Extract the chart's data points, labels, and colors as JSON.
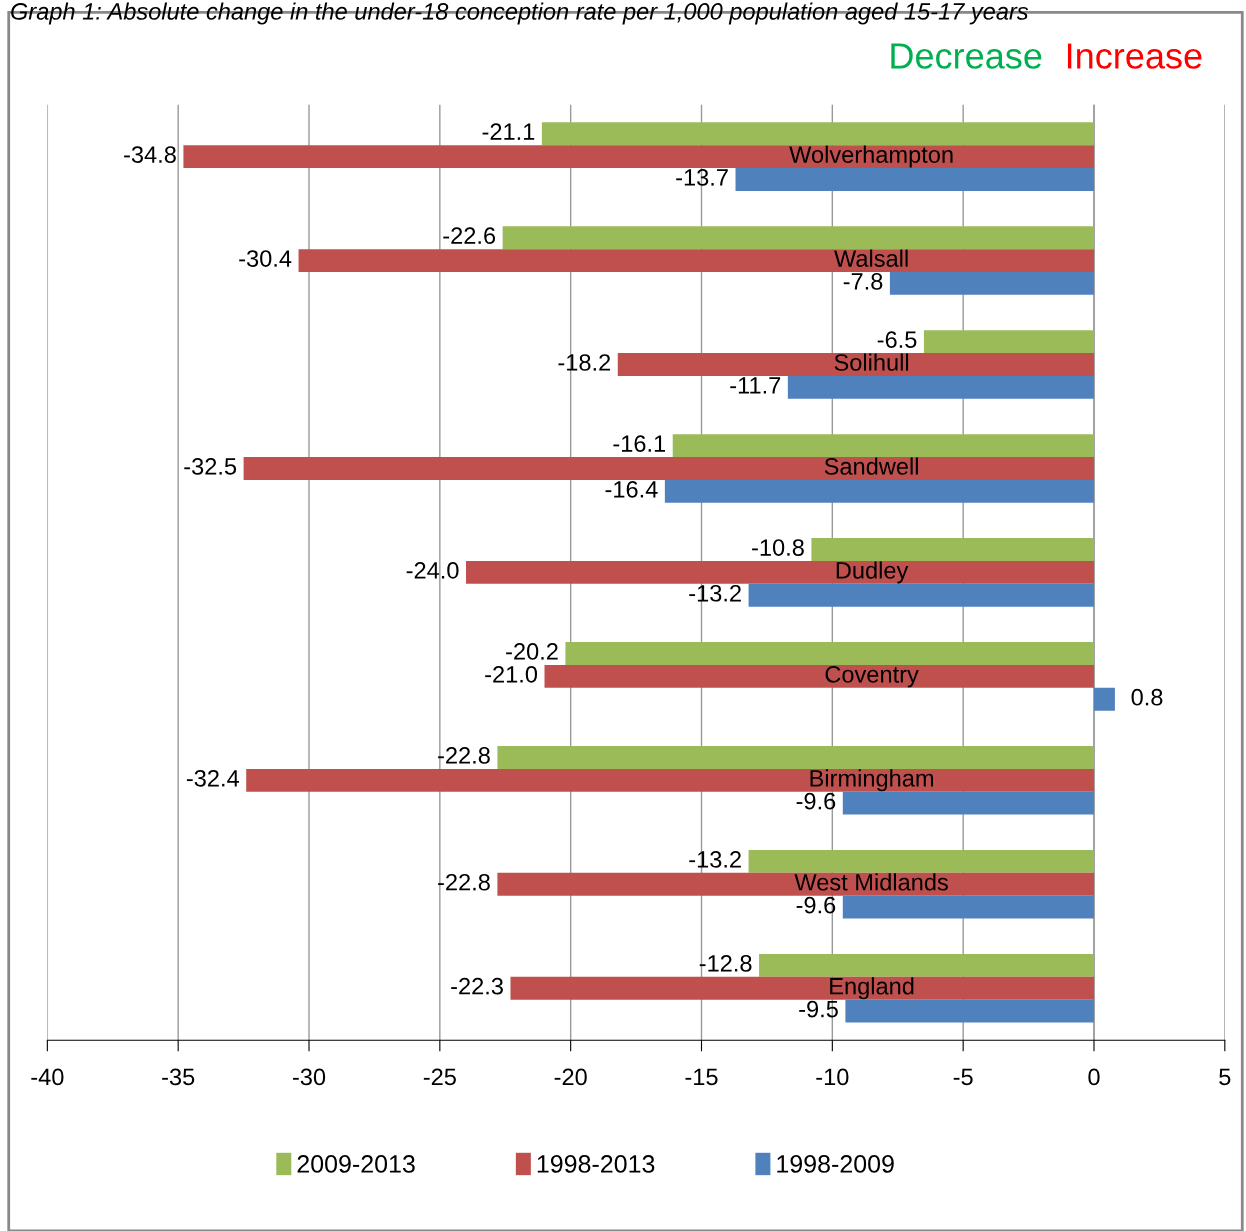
{
  "chart_data": {
    "type": "bar",
    "orientation": "horizontal",
    "title": "Graph 1: Absolute change in the under-18 conception rate per 1,000 population aged 15-17 years",
    "annotations": [
      "Decrease",
      "Increase"
    ],
    "categories": [
      "Wolverhampton",
      "Walsall",
      "Solihull",
      "Sandwell",
      "Dudley",
      "Coventry",
      "Birmingham",
      "West Midlands",
      "England"
    ],
    "series": [
      {
        "name": "2009-2013",
        "color": "#9bbb59",
        "values": [
          -21.1,
          -22.6,
          -6.5,
          -16.1,
          -10.8,
          -20.2,
          -22.8,
          -13.2,
          -12.8
        ],
        "value_labels": [
          "-21.1",
          "-22.6",
          "-6.5",
          "-16.1",
          "-10.8",
          "-20.2",
          "-22.8",
          "-13.2",
          "-12.8"
        ]
      },
      {
        "name": "1998-2013",
        "color": "#c0504d",
        "values": [
          -34.8,
          -30.4,
          -18.2,
          -32.5,
          -24.0,
          -21.0,
          -32.4,
          -22.8,
          -22.3
        ],
        "value_labels": [
          "-34.8",
          "-30.4",
          "-18.2",
          "-32.5",
          "-24.0",
          "-21.0",
          "-32.4",
          "-22.8",
          "-22.3"
        ]
      },
      {
        "name": "1998-2009",
        "color": "#4f81bd",
        "values": [
          -13.7,
          -7.8,
          -11.7,
          -16.4,
          -13.2,
          0.8,
          -9.6,
          -9.6,
          -9.5
        ],
        "value_labels": [
          "-13.7",
          "-7.8",
          "-11.7",
          "-16.4",
          "-13.2",
          "0.8",
          "-9.6",
          "-9.6",
          "-9.5"
        ]
      }
    ],
    "xlim": [
      -40,
      5
    ],
    "xticks": [
      -40,
      -35,
      -30,
      -25,
      -20,
      -15,
      -10,
      -5,
      0,
      5
    ],
    "grid": "x",
    "legend": "bottom"
  }
}
